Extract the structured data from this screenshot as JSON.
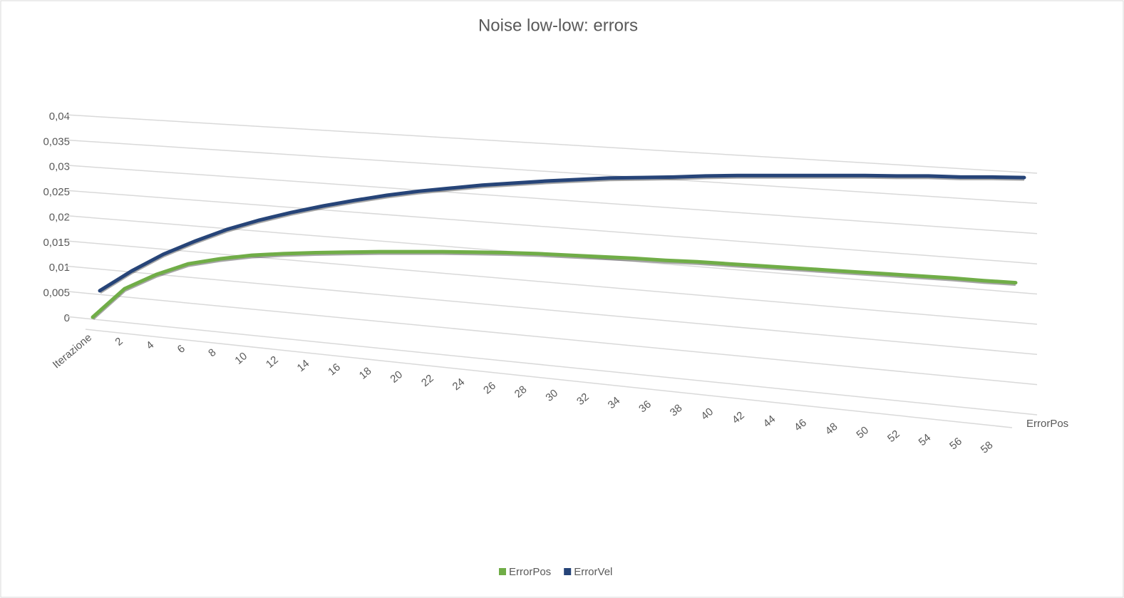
{
  "chart_data": {
    "type": "line3d",
    "title": "Noise low-low: errors",
    "categories": [
      "Iterazione",
      "2",
      "4",
      "6",
      "8",
      "10",
      "12",
      "14",
      "16",
      "18",
      "20",
      "22",
      "24",
      "26",
      "28",
      "30",
      "32",
      "34",
      "36",
      "38",
      "40",
      "42",
      "44",
      "46",
      "48",
      "50",
      "52",
      "54",
      "56",
      "58"
    ],
    "depth_label": "ErrorPos",
    "series": [
      {
        "name": "ErrorPos",
        "color": "#70ad47",
        "values": [
          0,
          0.0056,
          0.0084,
          0.0105,
          0.0115,
          0.0122,
          0.0125,
          0.0127,
          0.0128,
          0.0129,
          0.0129,
          0.0129,
          0.0128,
          0.0127,
          0.0125,
          0.0122,
          0.0119,
          0.0116,
          0.0112,
          0.0109,
          0.0105,
          0.0101,
          0.0097,
          0.0093,
          0.0089,
          0.0085,
          0.0081,
          0.0077,
          0.0072,
          0.0068
        ]
      },
      {
        "name": "ErrorVel",
        "color": "#264478",
        "values": [
          0.0052,
          0.0091,
          0.0124,
          0.015,
          0.0173,
          0.0191,
          0.0206,
          0.0219,
          0.023,
          0.024,
          0.0248,
          0.0254,
          0.026,
          0.0264,
          0.0268,
          0.0271,
          0.0274,
          0.0275,
          0.0276,
          0.0278,
          0.0279,
          0.0279,
          0.0279,
          0.0279,
          0.0279,
          0.0278,
          0.0278,
          0.0276,
          0.0276,
          0.0275
        ]
      }
    ],
    "ylim": [
      0,
      0.04
    ],
    "yticks": [
      0,
      {
        "value": 0.005,
        "label": "0,005"
      },
      {
        "value": 0.01,
        "label": "0,01"
      },
      {
        "value": 0.015,
        "label": "0,015"
      },
      {
        "value": 0.02,
        "label": "0,02"
      },
      {
        "value": 0.025,
        "label": "0,025"
      },
      {
        "value": 0.03,
        "label": "0,03"
      },
      {
        "value": 0.035,
        "label": "0,035"
      },
      {
        "value": 0.04,
        "label": "0,04"
      }
    ],
    "grid": true,
    "legend": "bottom"
  }
}
